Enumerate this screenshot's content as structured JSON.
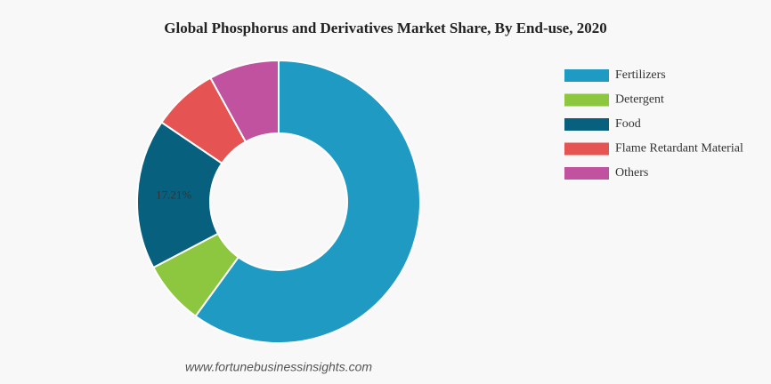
{
  "chart_data": {
    "type": "donut",
    "title": "Global Phosphorus and Derivatives Market Share, By End-use, 2020",
    "categories": [
      "Fertilizers",
      "Detergent",
      "Food",
      "Flame Retardant Material",
      "Others"
    ],
    "values": [
      60.0,
      7.3,
      17.21,
      7.5,
      8.0
    ],
    "value_labels": [
      null,
      null,
      "17.21%",
      null,
      null
    ],
    "colors": [
      "#1f9bc3",
      "#8dc63f",
      "#08607f",
      "#e55353",
      "#c052a0"
    ],
    "legend": "top-right",
    "source": "www.fortunebusinessinsights.com"
  }
}
